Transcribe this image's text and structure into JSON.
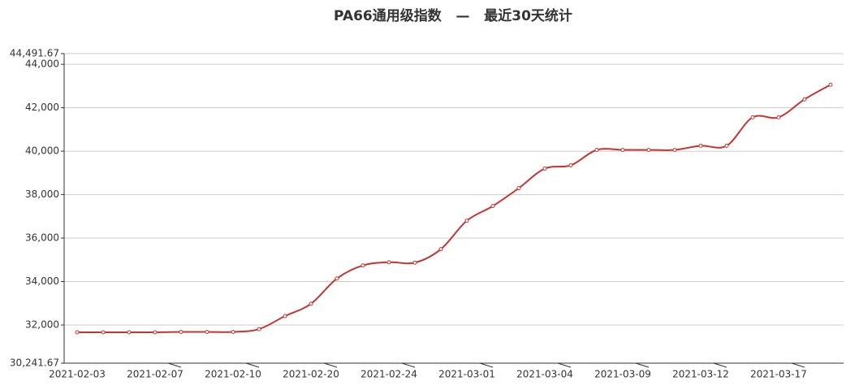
{
  "chart_data": {
    "type": "line",
    "title": "PA66通用级指数   —   最近30天统计",
    "categories": [
      "2021-02-03",
      null,
      null,
      "2021-02-07",
      null,
      null,
      "2021-02-10",
      null,
      null,
      "2021-02-20",
      null,
      null,
      "2021-02-24",
      null,
      null,
      "2021-03-01",
      null,
      null,
      "2021-03-04",
      null,
      null,
      "2021-03-09",
      null,
      null,
      "2021-03-12",
      null,
      null,
      "2021-03-17",
      null,
      null
    ],
    "series": [
      {
        "color": "#c23531",
        "values": [
          31662,
          31662,
          31662,
          31662,
          31680,
          31680,
          31680,
          31810,
          32410,
          32975,
          34140,
          34740,
          34890,
          34870,
          35490,
          36800,
          37475,
          38300,
          39200,
          39350,
          40060,
          40060,
          40060,
          40060,
          40250,
          40250,
          41560,
          41560,
          42390,
          43060
        ]
      }
    ],
    "ylim": [
      30241.67,
      44491.67
    ],
    "yticks": [
      {
        "value": 30241.67,
        "label": "30,241.67"
      },
      {
        "value": 32000,
        "label": "32,000"
      },
      {
        "value": 34000,
        "label": "34,000"
      },
      {
        "value": 36000,
        "label": "36,000"
      },
      {
        "value": 38000,
        "label": "38,000"
      },
      {
        "value": 40000,
        "label": "40,000"
      },
      {
        "value": 42000,
        "label": "42,000"
      },
      {
        "value": 44000,
        "label": "44,000"
      },
      {
        "value": 44491.67,
        "label": "44,491.67"
      }
    ],
    "grid": true,
    "smooth": true
  }
}
